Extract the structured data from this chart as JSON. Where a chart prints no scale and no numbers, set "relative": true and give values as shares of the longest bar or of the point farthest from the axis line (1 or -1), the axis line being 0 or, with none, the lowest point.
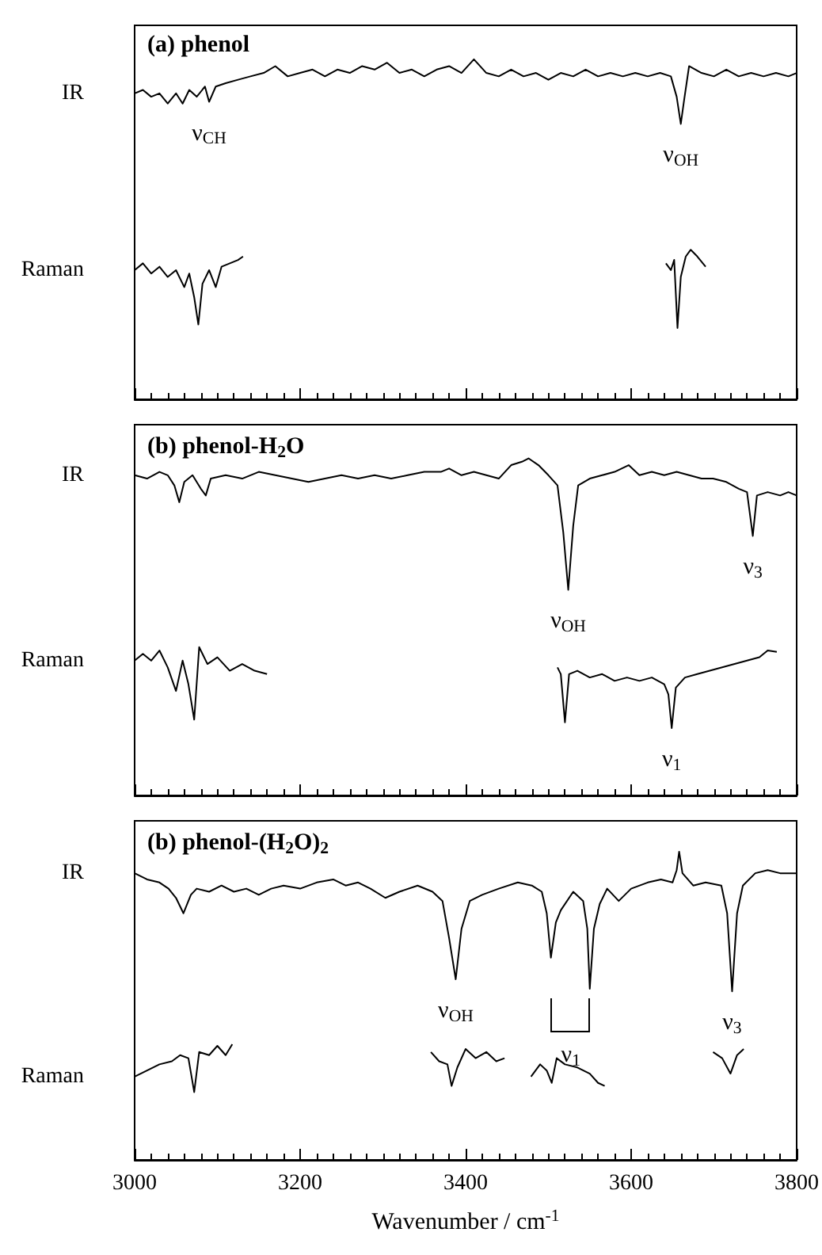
{
  "chart_data": [
    {
      "type": "line",
      "relative": true,
      "title": "(a) phenol",
      "xlim": [
        3000,
        3800
      ],
      "xticks": [
        3000,
        3200,
        3400,
        3600,
        3800
      ],
      "tick_labels": false,
      "series": [
        {
          "name": "IR",
          "color": "#000000",
          "x": [
            3000,
            3010,
            3020,
            3030,
            3040,
            3050,
            3058,
            3066,
            3075,
            3085,
            3090,
            3098,
            3110,
            3125,
            3140,
            3156,
            3170,
            3185,
            3200,
            3215,
            3230,
            3245,
            3260,
            3275,
            3290,
            3305,
            3320,
            3335,
            3350,
            3365,
            3380,
            3395,
            3410,
            3425,
            3440,
            3455,
            3470,
            3485,
            3500,
            3515,
            3530,
            3545,
            3560,
            3575,
            3590,
            3605,
            3620,
            3635,
            3648,
            3655,
            3660,
            3664,
            3670,
            3685,
            3700,
            3715,
            3730,
            3745,
            3760,
            3775,
            3790,
            3800
          ],
          "values": [
            0.9,
            0.91,
            0.89,
            0.9,
            0.87,
            0.9,
            0.87,
            0.91,
            0.89,
            0.92,
            0.875,
            0.92,
            0.93,
            0.94,
            0.95,
            0.96,
            0.98,
            0.95,
            0.96,
            0.97,
            0.95,
            0.97,
            0.96,
            0.98,
            0.97,
            0.99,
            0.96,
            0.97,
            0.95,
            0.97,
            0.98,
            0.96,
            1.0,
            0.96,
            0.95,
            0.97,
            0.95,
            0.96,
            0.94,
            0.96,
            0.95,
            0.97,
            0.95,
            0.96,
            0.95,
            0.96,
            0.95,
            0.96,
            0.95,
            0.89,
            0.81,
            0.88,
            0.98,
            0.96,
            0.95,
            0.97,
            0.95,
            0.96,
            0.95,
            0.96,
            0.95,
            0.96
          ]
        },
        {
          "name": "Raman",
          "color": "#000000",
          "x": [
            3000,
            3010,
            3020,
            3030,
            3040,
            3050,
            3060,
            3066,
            3072,
            3077,
            3082,
            3090,
            3098,
            3105,
            3115,
            3125,
            3131,
            3400,
            3642,
            3648,
            3652,
            3656,
            3660,
            3666,
            3672,
            3680,
            3690
          ],
          "values": [
            0.38,
            0.4,
            0.37,
            0.39,
            0.36,
            0.38,
            0.33,
            0.37,
            0.3,
            0.22,
            0.34,
            0.38,
            0.33,
            0.39,
            0.4,
            0.41,
            0.42,
            null,
            0.4,
            0.38,
            0.41,
            0.21,
            0.36,
            0.42,
            0.44,
            0.42,
            0.39
          ]
        }
      ],
      "annotations": [
        {
          "text": "ν$_{CH}$",
          "x": 3090,
          "y": 0.875
        },
        {
          "text": "ν$_{OH}$",
          "x": 3660,
          "y": 0.81
        }
      ]
    },
    {
      "type": "line",
      "relative": true,
      "title": "(b) phenol-H$_{2}$O",
      "xlim": [
        3000,
        3800
      ],
      "xticks": [
        3000,
        3200,
        3400,
        3600,
        3800
      ],
      "tick_labels": false,
      "series": [
        {
          "name": "IR",
          "color": "#000000",
          "x": [
            3000,
            3015,
            3030,
            3040,
            3048,
            3054,
            3060,
            3070,
            3080,
            3086,
            3092,
            3110,
            3130,
            3150,
            3170,
            3190,
            3210,
            3230,
            3250,
            3270,
            3290,
            3310,
            3330,
            3350,
            3370,
            3380,
            3395,
            3410,
            3425,
            3440,
            3455,
            3468,
            3476,
            3488,
            3500,
            3511,
            3518,
            3524,
            3530,
            3536,
            3550,
            3565,
            3580,
            3597,
            3610,
            3625,
            3640,
            3655,
            3670,
            3685,
            3699,
            3715,
            3730,
            3740,
            3747,
            3752,
            3765,
            3780,
            3790,
            3800
          ],
          "values": [
            0.95,
            0.94,
            0.96,
            0.95,
            0.92,
            0.87,
            0.93,
            0.95,
            0.91,
            0.89,
            0.94,
            0.95,
            0.94,
            0.96,
            0.95,
            0.94,
            0.93,
            0.94,
            0.95,
            0.94,
            0.95,
            0.94,
            0.95,
            0.96,
            0.96,
            0.97,
            0.95,
            0.96,
            0.95,
            0.94,
            0.98,
            0.99,
            1.0,
            0.98,
            0.95,
            0.92,
            0.78,
            0.61,
            0.8,
            0.92,
            0.94,
            0.95,
            0.96,
            0.98,
            0.95,
            0.96,
            0.95,
            0.96,
            0.95,
            0.94,
            0.94,
            0.93,
            0.91,
            0.9,
            0.77,
            0.89,
            0.9,
            0.89,
            0.9,
            0.89
          ]
        },
        {
          "name": "Raman",
          "color": "#000000",
          "x": [
            3000,
            3010,
            3020,
            3030,
            3040,
            3050,
            3058,
            3065,
            3072,
            3078,
            3088,
            3100,
            3115,
            3130,
            3145,
            3160,
            3330,
            3511,
            3515,
            3520,
            3525,
            3535,
            3550,
            3565,
            3580,
            3595,
            3610,
            3625,
            3640,
            3645,
            3649,
            3654,
            3665,
            3680,
            3695,
            3710,
            3725,
            3740,
            3755,
            3765,
            3776
          ],
          "values": [
            0.4,
            0.42,
            0.4,
            0.43,
            0.38,
            0.31,
            0.4,
            0.33,
            0.225,
            0.44,
            0.39,
            0.41,
            0.37,
            0.39,
            0.37,
            0.36,
            null,
            0.38,
            0.36,
            0.217,
            0.36,
            0.37,
            0.35,
            0.36,
            0.34,
            0.35,
            0.34,
            0.35,
            0.33,
            0.3,
            0.2,
            0.32,
            0.35,
            0.36,
            0.37,
            0.38,
            0.39,
            0.4,
            0.41,
            0.43,
            0.426
          ]
        }
      ],
      "annotations": [
        {
          "text": "ν$_{OH}$",
          "x": 3524,
          "y": 0.61
        },
        {
          "text": "ν$_{3}$",
          "x": 3747,
          "y": 0.77
        },
        {
          "text": "ν$_{1}$",
          "x": 3649,
          "y": 0.2
        }
      ]
    },
    {
      "type": "line",
      "relative": true,
      "title": "(b) phenol-(H$_{2}$O)$_{2}$",
      "xlabel": "Wavenumber / cm$^{-1}$",
      "xlim": [
        3000,
        3800
      ],
      "xticks": [
        3000,
        3200,
        3400,
        3600,
        3800
      ],
      "tick_labels": "x",
      "series": [
        {
          "name": "IR",
          "color": "#000000",
          "x": [
            3000,
            3015,
            3030,
            3041,
            3050,
            3059,
            3068,
            3075,
            3090,
            3105,
            3120,
            3135,
            3150,
            3165,
            3180,
            3200,
            3220,
            3240,
            3255,
            3270,
            3285,
            3303,
            3320,
            3342,
            3360,
            3372,
            3380,
            3388,
            3395,
            3405,
            3420,
            3440,
            3463,
            3480,
            3492,
            3498,
            3503,
            3509,
            3515,
            3530,
            3542,
            3547,
            3550,
            3555,
            3562,
            3571,
            3585,
            3600,
            3620,
            3636,
            3650,
            3655,
            3658,
            3662,
            3675,
            3690,
            3709,
            3716,
            3722,
            3728,
            3735,
            3750,
            3765,
            3780,
            3800
          ],
          "values": [
            0.93,
            0.91,
            0.9,
            0.88,
            0.85,
            0.8,
            0.86,
            0.88,
            0.87,
            0.89,
            0.87,
            0.88,
            0.86,
            0.88,
            0.89,
            0.88,
            0.9,
            0.91,
            0.89,
            0.9,
            0.88,
            0.85,
            0.87,
            0.89,
            0.87,
            0.84,
            0.72,
            0.586,
            0.75,
            0.84,
            0.86,
            0.88,
            0.9,
            0.89,
            0.87,
            0.8,
            0.656,
            0.77,
            0.81,
            0.87,
            0.84,
            0.75,
            0.555,
            0.75,
            0.83,
            0.88,
            0.84,
            0.88,
            0.9,
            0.91,
            0.9,
            0.94,
            1.0,
            0.93,
            0.89,
            0.9,
            0.89,
            0.8,
            0.547,
            0.8,
            0.89,
            0.93,
            0.94,
            0.93,
            0.93
          ]
        },
        {
          "name": "Raman",
          "color": "#000000",
          "x": [
            3000,
            3015,
            3030,
            3045,
            3055,
            3065,
            3072,
            3078,
            3090,
            3100,
            3110,
            3118,
            3240,
            3358,
            3368,
            3378,
            3383,
            3390,
            3400,
            3412,
            3425,
            3437,
            3447,
            3463,
            3479,
            3490,
            3498,
            3504,
            3510,
            3520,
            3535,
            3550,
            3560,
            3568,
            3630,
            3699,
            3710,
            3720,
            3728,
            3736
          ],
          "values": [
            0.27,
            0.29,
            0.31,
            0.32,
            0.34,
            0.33,
            0.22,
            0.35,
            0.34,
            0.37,
            0.34,
            0.375,
            null,
            0.35,
            0.32,
            0.31,
            0.24,
            0.3,
            0.36,
            0.33,
            0.35,
            0.32,
            0.33,
            null,
            0.27,
            0.31,
            0.29,
            0.25,
            0.33,
            0.31,
            0.3,
            0.28,
            0.25,
            0.24,
            null,
            0.35,
            0.33,
            0.28,
            0.34,
            0.36
          ]
        }
      ],
      "annotations": [
        {
          "text": "ν$_{OH}$",
          "x": 3388,
          "y": 0.586
        },
        {
          "text": "ν$_{1}$",
          "x": 3550,
          "y": 0.555
        },
        {
          "text": "ν$_{3}$",
          "x": 3722,
          "y": 0.547
        }
      ]
    }
  ]
}
